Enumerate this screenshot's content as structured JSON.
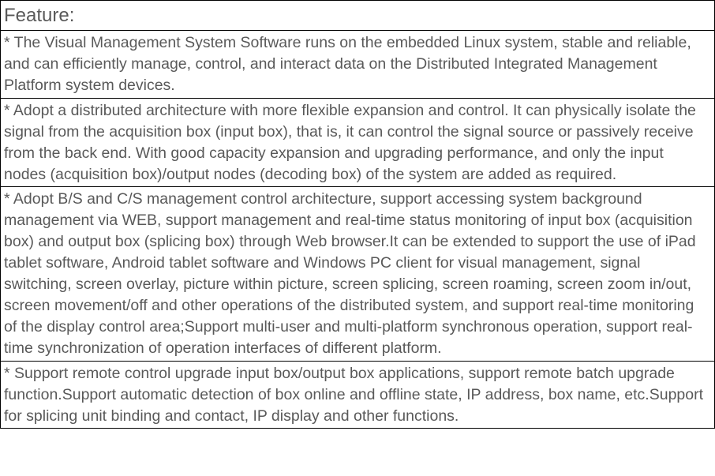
{
  "colors": {
    "text": "#595959",
    "border": "#000000",
    "background": "#ffffff"
  },
  "typography": {
    "font_family": "Arial, Helvetica, sans-serif",
    "header_fontsize": 24,
    "body_fontsize": 19.5,
    "line_height": 1.38
  },
  "table": {
    "header": "Feature:",
    "rows": [
      "* The Visual Management System Software runs on the embedded Linux system, stable and reliable, and can efficiently manage, control, and interact data on the Distributed Integrated Management Platform system devices.",
      "* Adopt a distributed architecture with more flexible expansion and control. It can physically isolate the signal from the acquisition box (input box), that is, it can control the signal source or passively receive from the back end. With good capacity expansion and upgrading performance, and only the input nodes (acquisition box)/output nodes (decoding box) of the system are added as required.",
      "* Adopt B/S and C/S management control architecture, support accessing system background management via WEB,  support management and real-time status monitoring of input box (acquisition box) and output box (splicing box) through Web browser.It can be extended to support the use of iPad tablet software, Android tablet software and Windows PC client for visual management, signal switching, screen overlay, picture within picture, screen splicing, screen roaming, screen zoom in/out, screen movement/off and other operations of the distributed system, and support real-time monitoring of the display control area;Support multi-user and multi-platform synchronous operation, support real-time synchronization of operation interfaces of different platform.",
      "* Support remote control upgrade input box/output box applications, support remote batch upgrade function.Support automatic detection of box online and offline state, IP address, box name, etc.Support for splicing unit binding and contact, IP display and other functions."
    ]
  }
}
